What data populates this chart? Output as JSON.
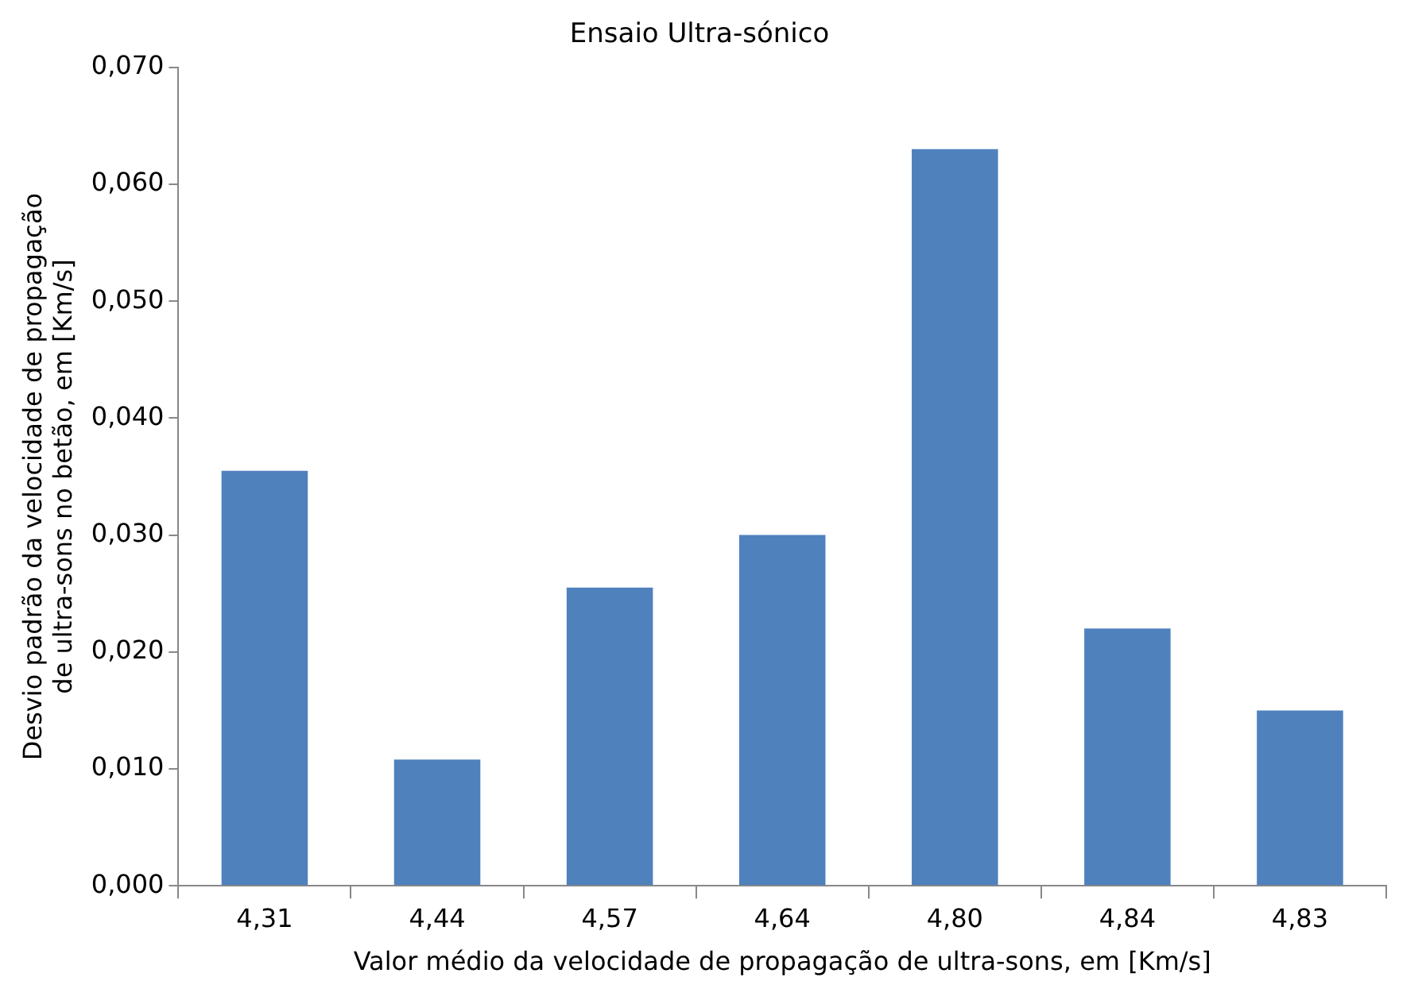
{
  "chart_data": {
    "type": "bar",
    "title": "Ensaio Ultra-sónico",
    "xlabel": "Valor médio da velocidade de propagação de ultra-sons, em [Km/s]",
    "ylabel": "Desvio padrão da velocidade de propagação de ultra-sons no betão, em [Km/s]",
    "categories": [
      "4,31",
      "4,44",
      "4,57",
      "4,64",
      "4,80",
      "4,84",
      "4,83"
    ],
    "values": [
      0.0355,
      0.0108,
      0.0255,
      0.03,
      0.063,
      0.022,
      0.015
    ],
    "color": "#4f81bd",
    "ylim": [
      0,
      0.07
    ],
    "yticks": [
      {
        "value": 0,
        "label": "0,000"
      },
      {
        "value": 0.01,
        "label": "0,010"
      },
      {
        "value": 0.02,
        "label": "0,020"
      },
      {
        "value": 0.03,
        "label": "0,030"
      },
      {
        "value": 0.04,
        "label": "0,040"
      },
      {
        "value": 0.05,
        "label": "0,050"
      },
      {
        "value": 0.06,
        "label": "0,060"
      },
      {
        "value": 0.07,
        "label": "0,070"
      }
    ],
    "grid": false,
    "legend": false
  }
}
